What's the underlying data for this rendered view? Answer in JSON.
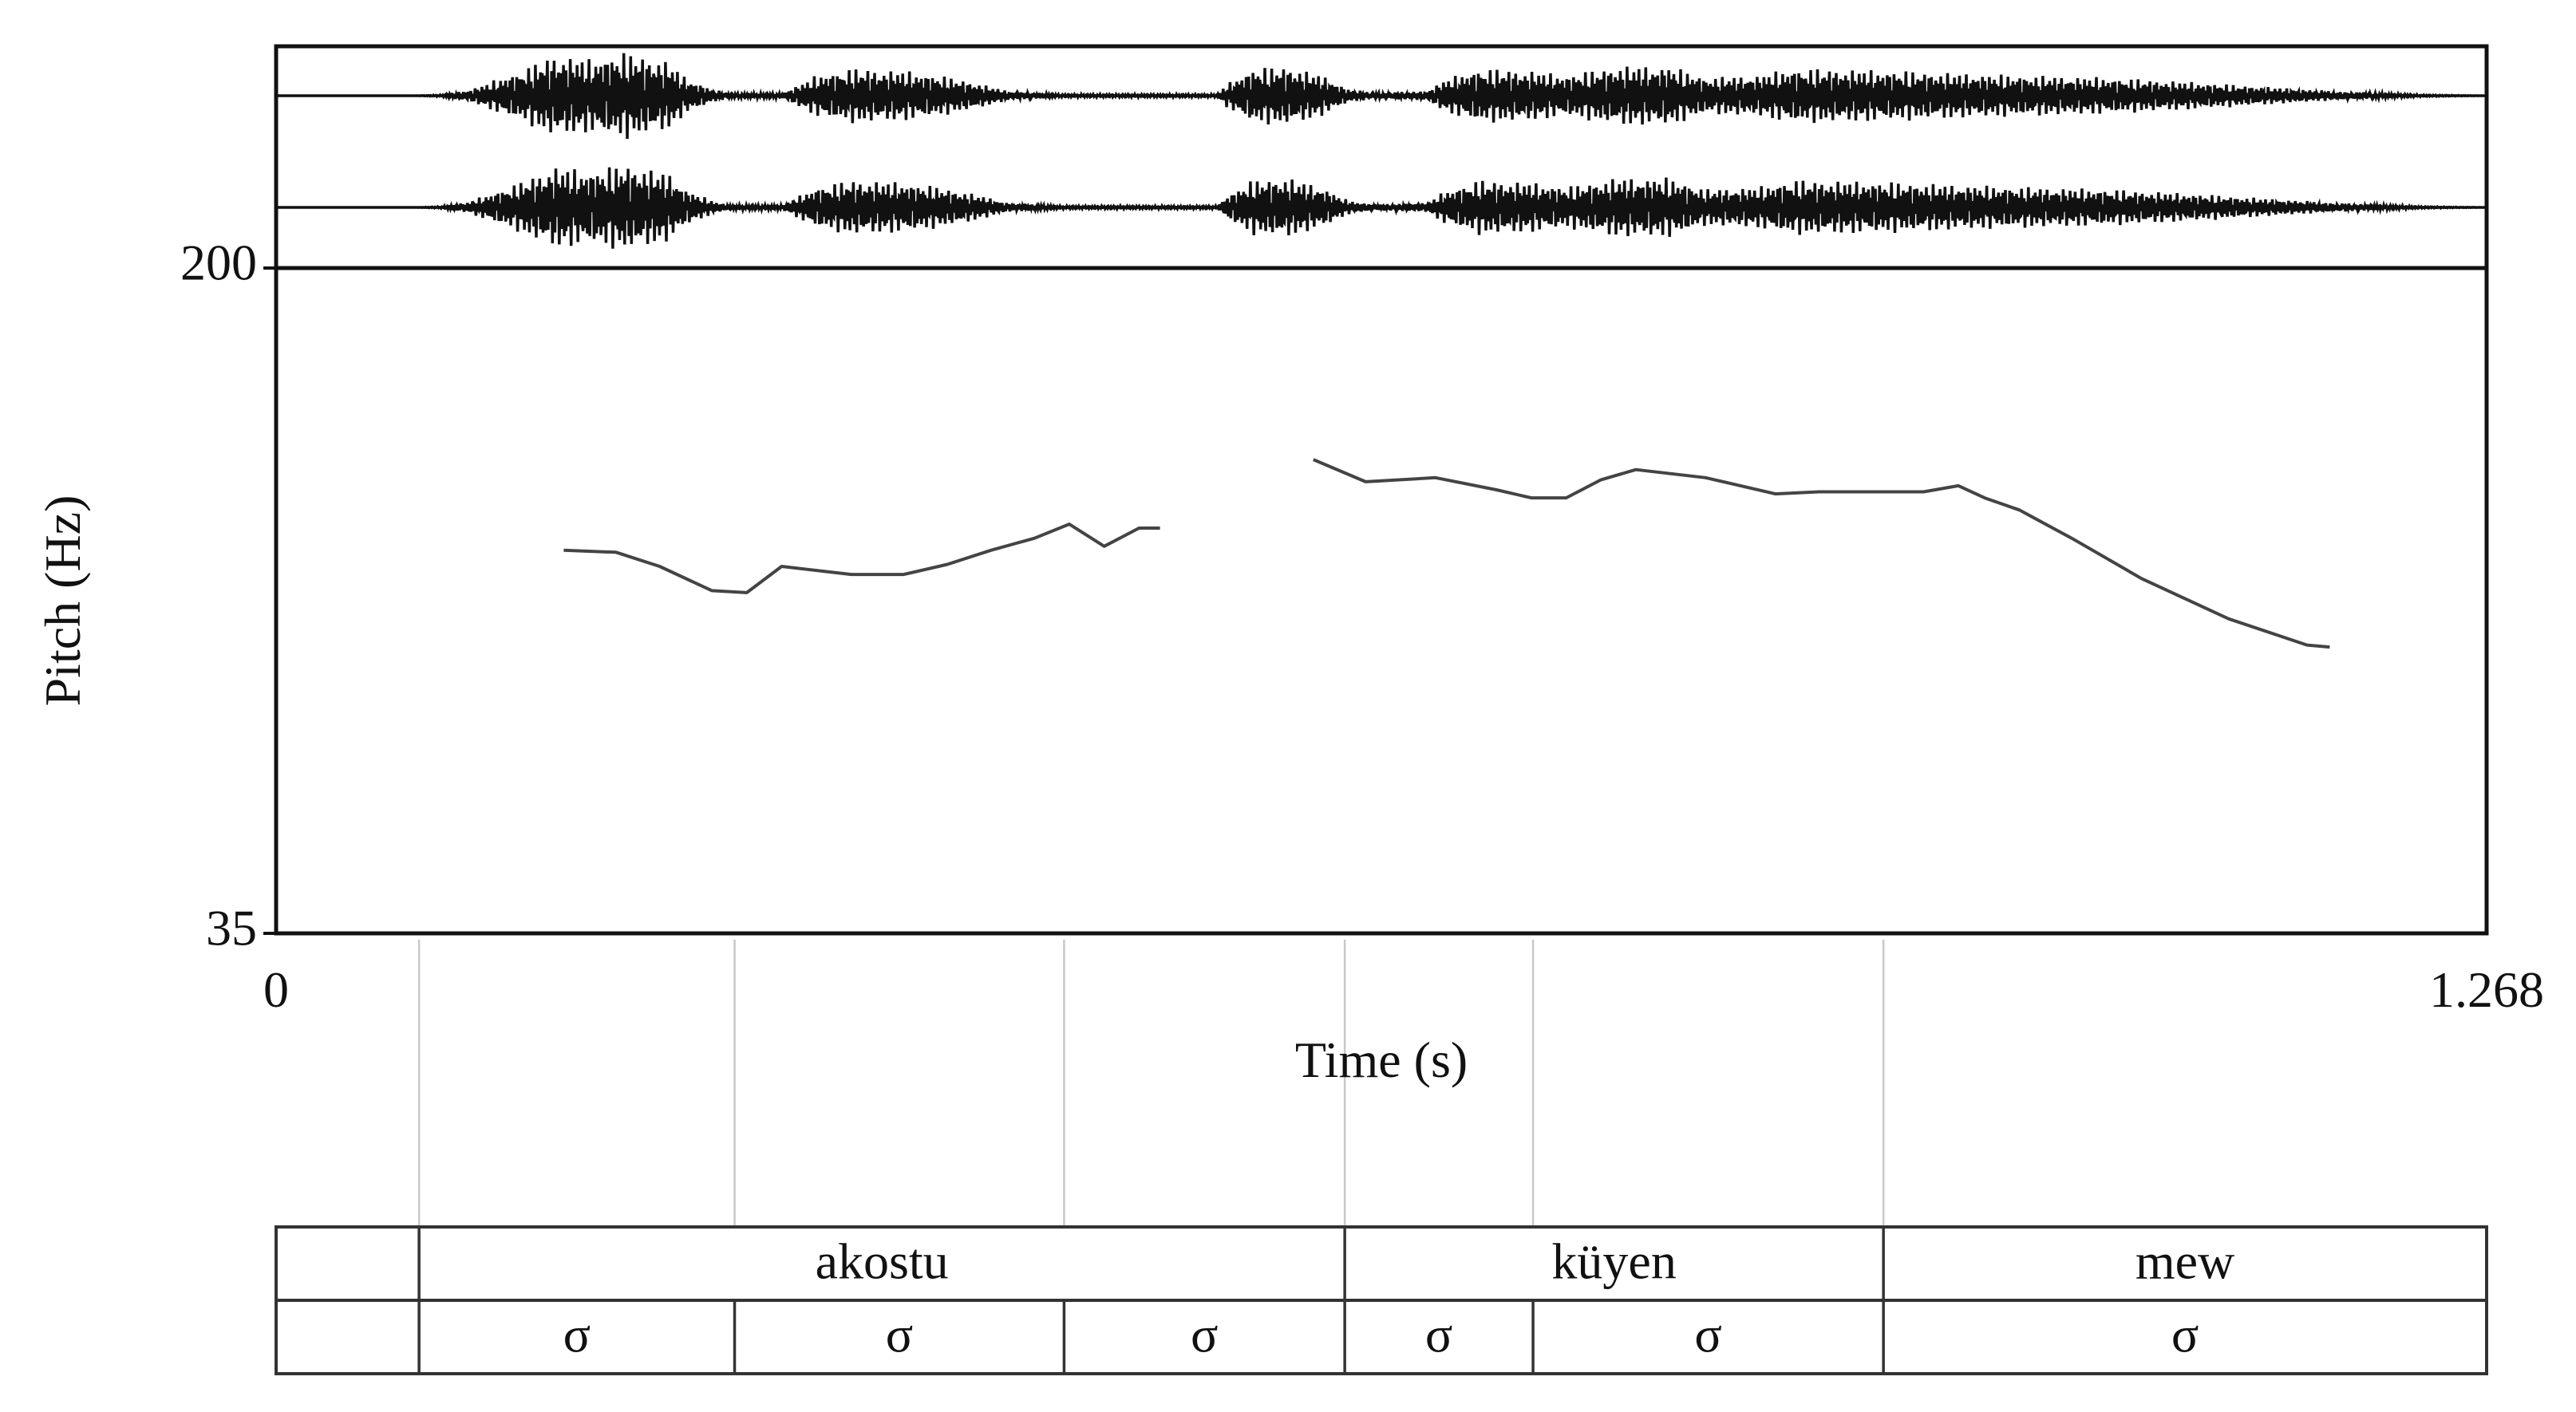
{
  "chart_data": {
    "type": "line",
    "title": "",
    "xlabel": "Time (s)",
    "ylabel": "Pitch (Hz)",
    "xlim": [
      0,
      1.268
    ],
    "ylim": [
      35,
      200
    ],
    "x_tick_labels": [
      "0",
      "1.268"
    ],
    "y_tick_labels": [
      "200",
      "35"
    ],
    "grid": false,
    "series": [
      {
        "values": [
          {
            "x": 0.165,
            "y": 130
          },
          {
            "x": 0.195,
            "y": 129.5
          },
          {
            "x": 0.22,
            "y": 126
          },
          {
            "x": 0.25,
            "y": 120
          },
          {
            "x": 0.27,
            "y": 119.5
          },
          {
            "x": 0.29,
            "y": 126
          },
          {
            "x": 0.33,
            "y": 124
          },
          {
            "x": 0.36,
            "y": 124
          },
          {
            "x": 0.385,
            "y": 126.5
          },
          {
            "x": 0.41,
            "y": 130
          },
          {
            "x": 0.435,
            "y": 133
          },
          {
            "x": 0.455,
            "y": 136.5
          },
          {
            "x": 0.475,
            "y": 131
          },
          {
            "x": 0.495,
            "y": 135.5
          },
          {
            "x": 0.507,
            "y": 135.5
          }
        ]
      },
      {
        "values": [
          {
            "x": 0.595,
            "y": 152.5
          },
          {
            "x": 0.625,
            "y": 147
          },
          {
            "x": 0.665,
            "y": 148
          },
          {
            "x": 0.7,
            "y": 145
          },
          {
            "x": 0.72,
            "y": 143
          },
          {
            "x": 0.74,
            "y": 143
          },
          {
            "x": 0.76,
            "y": 147.5
          },
          {
            "x": 0.78,
            "y": 150
          },
          {
            "x": 0.82,
            "y": 148
          },
          {
            "x": 0.86,
            "y": 144
          },
          {
            "x": 0.885,
            "y": 144.5
          },
          {
            "x": 0.91,
            "y": 144.5
          },
          {
            "x": 0.945,
            "y": 144.5
          },
          {
            "x": 0.965,
            "y": 146
          },
          {
            "x": 0.98,
            "y": 143
          },
          {
            "x": 1.0,
            "y": 140
          },
          {
            "x": 1.03,
            "y": 133
          },
          {
            "x": 1.07,
            "y": 123
          },
          {
            "x": 1.12,
            "y": 113
          },
          {
            "x": 1.165,
            "y": 106.5
          },
          {
            "x": 1.178,
            "y": 106
          }
        ]
      }
    ],
    "boundaries": [
      0.082,
      0.263,
      0.452,
      0.613,
      0.721,
      0.922
    ],
    "tiers": [
      {
        "intervals": [
          {
            "start": 0,
            "end": 0.082,
            "label": ""
          },
          {
            "start": 0.082,
            "end": 0.613,
            "label": "akostu"
          },
          {
            "start": 0.613,
            "end": 0.922,
            "label": "küyen"
          },
          {
            "start": 0.922,
            "end": 1.268,
            "label": "mew"
          }
        ]
      },
      {
        "intervals": [
          {
            "start": 0,
            "end": 0.082,
            "label": ""
          },
          {
            "start": 0.082,
            "end": 0.263,
            "label": "σ"
          },
          {
            "start": 0.263,
            "end": 0.452,
            "label": "σ"
          },
          {
            "start": 0.452,
            "end": 0.613,
            "label": "σ"
          },
          {
            "start": 0.613,
            "end": 0.721,
            "label": "σ"
          },
          {
            "start": 0.721,
            "end": 0.922,
            "label": "σ"
          },
          {
            "start": 0.922,
            "end": 1.268,
            "label": "σ"
          }
        ]
      }
    ],
    "waveform_envelope": {
      "channels": 2,
      "points": [
        [
          0.0,
          0.0
        ],
        [
          0.08,
          0.0
        ],
        [
          0.095,
          0.02
        ],
        [
          0.11,
          0.12
        ],
        [
          0.14,
          0.55
        ],
        [
          0.16,
          0.9
        ],
        [
          0.18,
          0.8
        ],
        [
          0.2,
          0.95
        ],
        [
          0.225,
          0.75
        ],
        [
          0.235,
          0.4
        ],
        [
          0.25,
          0.15
        ],
        [
          0.26,
          0.05
        ],
        [
          0.29,
          0.05
        ],
        [
          0.31,
          0.45
        ],
        [
          0.33,
          0.6
        ],
        [
          0.36,
          0.55
        ],
        [
          0.38,
          0.45
        ],
        [
          0.4,
          0.3
        ],
        [
          0.42,
          0.1
        ],
        [
          0.45,
          0.03
        ],
        [
          0.54,
          0.03
        ],
        [
          0.545,
          0.25
        ],
        [
          0.56,
          0.6
        ],
        [
          0.58,
          0.65
        ],
        [
          0.6,
          0.45
        ],
        [
          0.615,
          0.15
        ],
        [
          0.63,
          0.06
        ],
        [
          0.66,
          0.1
        ],
        [
          0.67,
          0.35
        ],
        [
          0.69,
          0.6
        ],
        [
          0.72,
          0.55
        ],
        [
          0.74,
          0.45
        ],
        [
          0.77,
          0.65
        ],
        [
          0.8,
          0.65
        ],
        [
          0.82,
          0.4
        ],
        [
          0.85,
          0.45
        ],
        [
          0.87,
          0.6
        ],
        [
          0.9,
          0.58
        ],
        [
          0.93,
          0.55
        ],
        [
          0.96,
          0.5
        ],
        [
          1.0,
          0.45
        ],
        [
          1.05,
          0.4
        ],
        [
          1.1,
          0.3
        ],
        [
          1.14,
          0.2
        ],
        [
          1.18,
          0.1
        ],
        [
          1.21,
          0.05
        ],
        [
          1.23,
          0.02
        ],
        [
          1.268,
          0.0
        ]
      ]
    }
  }
}
